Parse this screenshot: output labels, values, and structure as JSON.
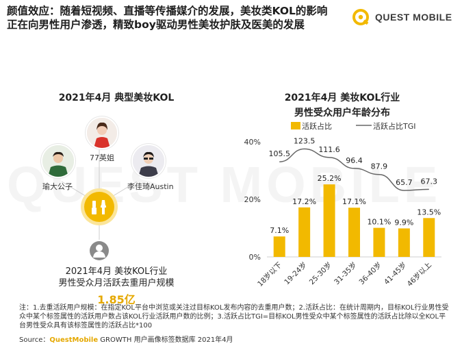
{
  "headline": "颜值效应：随着短视频、直播等传播媒介的发展，美妆类KOL的影响正在向男性用户渗透，精致boy驱动男性美妆护肤及医美的发展",
  "logo": {
    "text": "QUEST MOBILE",
    "icon": "quest-mobile-logo-icon",
    "color": "#f2b900"
  },
  "watermark": "QUEST MOBILE",
  "left_panel": {
    "title": "2021年4月 典型美妆KOL",
    "kols": [
      {
        "name": "77英姐",
        "icon": "kol-avatar-icon"
      },
      {
        "name": "瑜大公子",
        "icon": "kol-avatar-icon"
      },
      {
        "name": "李佳琦Austin",
        "icon": "kol-avatar-icon"
      }
    ],
    "hub_icon": "makeup-brush-icon",
    "user_icon": "user-icon",
    "caption_line1": "2021年4月 美妆KOL行业",
    "caption_line2": "男性受众月活跃去重用户规模",
    "value": "1.85亿"
  },
  "chart_data": {
    "type": "bar",
    "title": "2021年4月 美妆KOL行业",
    "subtitle": "男性受众用户年龄分布",
    "categories": [
      "18岁以下",
      "19-24岁",
      "25-30岁",
      "31-35岁",
      "36-40岁",
      "41-45岁",
      "46岁以上"
    ],
    "series": [
      {
        "name": "活跃占比",
        "type": "bar",
        "values": [
          7.1,
          17.2,
          25.2,
          17.1,
          10.1,
          9.9,
          13.5
        ],
        "labels": [
          "7.1%",
          "17.2%",
          "25.2%",
          "17.1%",
          "10.1%",
          "9.9%",
          "13.5%"
        ],
        "color": "#f2b900"
      },
      {
        "name": "活跃占比TGI",
        "type": "line",
        "values": [
          105.5,
          123.5,
          111.6,
          96.4,
          87.9,
          65.7,
          67.3
        ],
        "labels": [
          "105.5",
          "123.5",
          "111.6",
          "96.4",
          "87.9",
          "65.7",
          "67.3"
        ],
        "color": "#666666"
      }
    ],
    "y_ticks": [
      "0%",
      "20%",
      "40%"
    ],
    "ylim": [
      0,
      40
    ],
    "legend": [
      {
        "label": "活跃占比"
      },
      {
        "label": "活跃占比TGI"
      }
    ],
    "legend_position": "top",
    "grid": false
  },
  "footnote": "注：1.去重活跃用户规模：在指定KOL平台中浏览或关注过目标KOL发布内容的去重用户数；2.活跃占比：在统计周期内，目标KOL行业男性受众中某个标签属性的活跃用户数占该KOL行业活跃用户数的比例；3.活跃占比TGI=目标KOL男性受众中某个标签属性的活跃占比除以全KOL平台男性受众具有该标签属性的活跃占比*100",
  "source": {
    "prefix": "Source：",
    "brand": "QuestMobile",
    "rest": " GROWTH 用户画像标签数据库 2021年4月"
  }
}
